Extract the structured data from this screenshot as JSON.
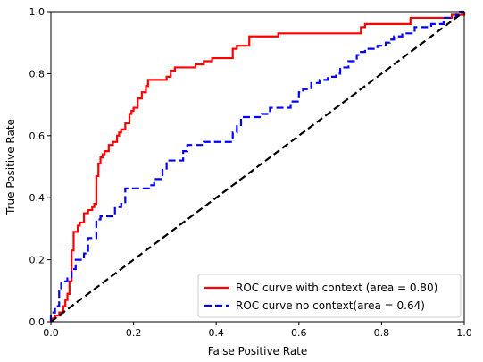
{
  "chart_data": {
    "type": "line",
    "xlabel": "False Positive Rate",
    "ylabel": "True Positive Rate",
    "xlim": [
      0.0,
      1.0
    ],
    "ylim": [
      0.0,
      1.0
    ],
    "x_ticks": [
      "0.0",
      "0.2",
      "0.4",
      "0.6",
      "0.8",
      "1.0"
    ],
    "y_ticks": [
      "0.0",
      "0.2",
      "0.4",
      "0.6",
      "0.8",
      "1.0"
    ],
    "grid": false,
    "legend_position": "bottom-right",
    "series": [
      {
        "name": "ROC curve with context (area = 0.80)",
        "color": "#ff0000",
        "style": "solid",
        "steps": [
          [
            0.0,
            0.0
          ],
          [
            0.0,
            0.01
          ],
          [
            0.01,
            0.01
          ],
          [
            0.01,
            0.02
          ],
          [
            0.02,
            0.02
          ],
          [
            0.02,
            0.03
          ],
          [
            0.03,
            0.03
          ],
          [
            0.03,
            0.05
          ],
          [
            0.035,
            0.05
          ],
          [
            0.035,
            0.07
          ],
          [
            0.04,
            0.07
          ],
          [
            0.04,
            0.09
          ],
          [
            0.045,
            0.09
          ],
          [
            0.045,
            0.13
          ],
          [
            0.05,
            0.13
          ],
          [
            0.05,
            0.23
          ],
          [
            0.055,
            0.23
          ],
          [
            0.055,
            0.29
          ],
          [
            0.065,
            0.29
          ],
          [
            0.065,
            0.31
          ],
          [
            0.07,
            0.31
          ],
          [
            0.07,
            0.32
          ],
          [
            0.08,
            0.32
          ],
          [
            0.08,
            0.35
          ],
          [
            0.09,
            0.35
          ],
          [
            0.09,
            0.36
          ],
          [
            0.1,
            0.36
          ],
          [
            0.1,
            0.37
          ],
          [
            0.105,
            0.37
          ],
          [
            0.105,
            0.38
          ],
          [
            0.11,
            0.38
          ],
          [
            0.11,
            0.47
          ],
          [
            0.115,
            0.47
          ],
          [
            0.115,
            0.51
          ],
          [
            0.12,
            0.51
          ],
          [
            0.12,
            0.53
          ],
          [
            0.125,
            0.53
          ],
          [
            0.125,
            0.54
          ],
          [
            0.13,
            0.54
          ],
          [
            0.13,
            0.55
          ],
          [
            0.14,
            0.55
          ],
          [
            0.14,
            0.57
          ],
          [
            0.15,
            0.57
          ],
          [
            0.15,
            0.58
          ],
          [
            0.16,
            0.58
          ],
          [
            0.16,
            0.6
          ],
          [
            0.165,
            0.6
          ],
          [
            0.165,
            0.61
          ],
          [
            0.17,
            0.61
          ],
          [
            0.17,
            0.62
          ],
          [
            0.18,
            0.62
          ],
          [
            0.18,
            0.64
          ],
          [
            0.19,
            0.64
          ],
          [
            0.19,
            0.67
          ],
          [
            0.195,
            0.67
          ],
          [
            0.195,
            0.68
          ],
          [
            0.2,
            0.68
          ],
          [
            0.2,
            0.69
          ],
          [
            0.21,
            0.69
          ],
          [
            0.21,
            0.72
          ],
          [
            0.22,
            0.72
          ],
          [
            0.22,
            0.74
          ],
          [
            0.23,
            0.74
          ],
          [
            0.23,
            0.76
          ],
          [
            0.235,
            0.76
          ],
          [
            0.235,
            0.78
          ],
          [
            0.28,
            0.78
          ],
          [
            0.28,
            0.79
          ],
          [
            0.29,
            0.79
          ],
          [
            0.29,
            0.81
          ],
          [
            0.3,
            0.81
          ],
          [
            0.3,
            0.82
          ],
          [
            0.35,
            0.82
          ],
          [
            0.35,
            0.83
          ],
          [
            0.37,
            0.83
          ],
          [
            0.37,
            0.84
          ],
          [
            0.39,
            0.84
          ],
          [
            0.39,
            0.85
          ],
          [
            0.44,
            0.85
          ],
          [
            0.44,
            0.88
          ],
          [
            0.45,
            0.88
          ],
          [
            0.45,
            0.89
          ],
          [
            0.48,
            0.89
          ],
          [
            0.48,
            0.92
          ],
          [
            0.55,
            0.92
          ],
          [
            0.55,
            0.93
          ],
          [
            0.75,
            0.93
          ],
          [
            0.75,
            0.95
          ],
          [
            0.76,
            0.95
          ],
          [
            0.76,
            0.96
          ],
          [
            0.87,
            0.96
          ],
          [
            0.87,
            0.98
          ],
          [
            0.97,
            0.98
          ],
          [
            0.97,
            0.99
          ],
          [
            1.0,
            0.99
          ],
          [
            1.0,
            1.0
          ]
        ]
      },
      {
        "name": "ROC curve no context(area = 0.64)",
        "color": "#0000ff",
        "style": "dashed",
        "steps": [
          [
            0.0,
            0.0
          ],
          [
            0.0,
            0.03
          ],
          [
            0.01,
            0.03
          ],
          [
            0.01,
            0.05
          ],
          [
            0.02,
            0.05
          ],
          [
            0.02,
            0.1
          ],
          [
            0.025,
            0.1
          ],
          [
            0.025,
            0.13
          ],
          [
            0.04,
            0.13
          ],
          [
            0.04,
            0.14
          ],
          [
            0.05,
            0.14
          ],
          [
            0.05,
            0.17
          ],
          [
            0.06,
            0.17
          ],
          [
            0.06,
            0.2
          ],
          [
            0.08,
            0.2
          ],
          [
            0.08,
            0.22
          ],
          [
            0.09,
            0.22
          ],
          [
            0.09,
            0.27
          ],
          [
            0.11,
            0.27
          ],
          [
            0.11,
            0.33
          ],
          [
            0.12,
            0.33
          ],
          [
            0.12,
            0.34
          ],
          [
            0.155,
            0.34
          ],
          [
            0.155,
            0.37
          ],
          [
            0.17,
            0.37
          ],
          [
            0.17,
            0.38
          ],
          [
            0.18,
            0.38
          ],
          [
            0.18,
            0.43
          ],
          [
            0.24,
            0.43
          ],
          [
            0.24,
            0.44
          ],
          [
            0.25,
            0.44
          ],
          [
            0.25,
            0.46
          ],
          [
            0.27,
            0.46
          ],
          [
            0.27,
            0.49
          ],
          [
            0.28,
            0.49
          ],
          [
            0.28,
            0.52
          ],
          [
            0.32,
            0.52
          ],
          [
            0.32,
            0.55
          ],
          [
            0.33,
            0.55
          ],
          [
            0.33,
            0.57
          ],
          [
            0.37,
            0.57
          ],
          [
            0.37,
            0.58
          ],
          [
            0.44,
            0.58
          ],
          [
            0.44,
            0.61
          ],
          [
            0.45,
            0.61
          ],
          [
            0.45,
            0.63
          ],
          [
            0.46,
            0.63
          ],
          [
            0.46,
            0.66
          ],
          [
            0.51,
            0.66
          ],
          [
            0.51,
            0.67
          ],
          [
            0.53,
            0.67
          ],
          [
            0.53,
            0.69
          ],
          [
            0.58,
            0.69
          ],
          [
            0.58,
            0.71
          ],
          [
            0.6,
            0.71
          ],
          [
            0.6,
            0.74
          ],
          [
            0.61,
            0.74
          ],
          [
            0.61,
            0.75
          ],
          [
            0.63,
            0.75
          ],
          [
            0.63,
            0.77
          ],
          [
            0.65,
            0.77
          ],
          [
            0.65,
            0.78
          ],
          [
            0.67,
            0.78
          ],
          [
            0.67,
            0.79
          ],
          [
            0.69,
            0.79
          ],
          [
            0.69,
            0.8
          ],
          [
            0.7,
            0.8
          ],
          [
            0.7,
            0.82
          ],
          [
            0.72,
            0.82
          ],
          [
            0.72,
            0.84
          ],
          [
            0.74,
            0.84
          ],
          [
            0.74,
            0.86
          ],
          [
            0.75,
            0.86
          ],
          [
            0.75,
            0.87
          ],
          [
            0.76,
            0.87
          ],
          [
            0.76,
            0.88
          ],
          [
            0.79,
            0.88
          ],
          [
            0.79,
            0.89
          ],
          [
            0.81,
            0.89
          ],
          [
            0.81,
            0.9
          ],
          [
            0.82,
            0.9
          ],
          [
            0.82,
            0.91
          ],
          [
            0.83,
            0.91
          ],
          [
            0.83,
            0.92
          ],
          [
            0.85,
            0.92
          ],
          [
            0.85,
            0.93
          ],
          [
            0.88,
            0.93
          ],
          [
            0.88,
            0.95
          ],
          [
            0.92,
            0.95
          ],
          [
            0.92,
            0.96
          ],
          [
            0.95,
            0.96
          ],
          [
            0.95,
            0.98
          ],
          [
            0.98,
            0.98
          ],
          [
            0.98,
            0.99
          ],
          [
            0.99,
            0.99
          ],
          [
            0.99,
            1.0
          ],
          [
            1.0,
            1.0
          ]
        ]
      },
      {
        "name": "",
        "color": "#000000",
        "style": "dashed",
        "steps": [
          [
            0.0,
            0.0
          ],
          [
            1.0,
            1.0
          ]
        ]
      }
    ]
  }
}
